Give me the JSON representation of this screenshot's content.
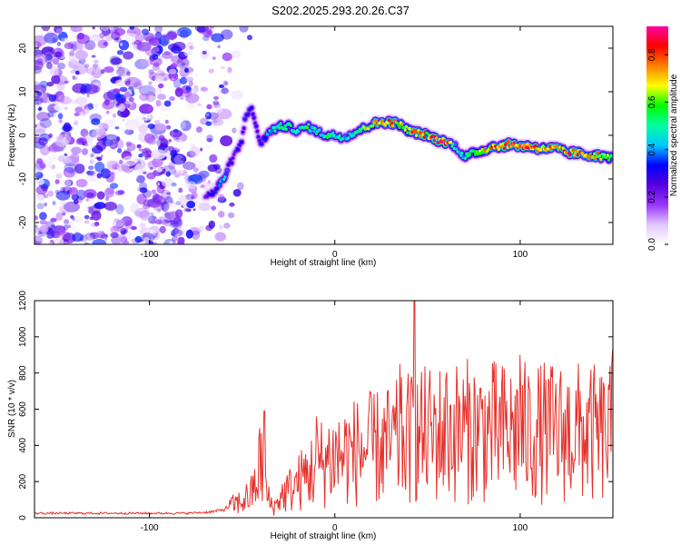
{
  "title": "S202.2025.293.20.26.C37",
  "chart_data": [
    {
      "type": "heatmap",
      "name": "spectrogram",
      "xlabel": "Height of straight line (km)",
      "ylabel": "Frequency (Hz)",
      "xlim": [
        -162,
        150
      ],
      "ylim": [
        -25,
        25
      ],
      "xticks": [
        -100,
        0,
        100
      ],
      "yticks": [
        -20,
        -10,
        0,
        10,
        20
      ],
      "colorbar": {
        "label": "Normalized spectral amplitude",
        "range": [
          0.0,
          0.92
        ],
        "ticks": [
          0.0,
          0.2,
          0.4,
          0.6,
          0.8
        ],
        "tick_labels": [
          "0.0",
          "0.2",
          "0.4",
          "0.6",
          "0.8"
        ],
        "colors": [
          "#ffffff",
          "#e0c8ff",
          "#9933ff",
          "#5500dd",
          "#0000ff",
          "#00c8ff",
          "#00ffa0",
          "#00ff00",
          "#ffff00",
          "#ff8000",
          "#ff0000",
          "#ff00a0"
        ]
      },
      "noise_region": {
        "x_from": -162,
        "x_to": -60,
        "y_from": -25,
        "y_to": 25,
        "amplitude": 0.18
      },
      "ridge": {
        "x": [
          -70,
          -65,
          -60,
          -56,
          -52,
          -50,
          -48,
          -45,
          -43,
          -40,
          -35,
          -30,
          -25,
          -20,
          -15,
          -10,
          -5,
          0,
          5,
          10,
          15,
          20,
          25,
          30,
          35,
          40,
          45,
          50,
          55,
          60,
          65,
          70,
          75,
          80,
          85,
          90,
          95,
          100,
          105,
          110,
          115,
          120,
          125,
          130,
          135,
          140,
          145,
          150
        ],
        "y": [
          -14,
          -13,
          -10,
          -6,
          -3,
          -1,
          5,
          6,
          3,
          -2,
          1,
          2,
          2,
          1,
          2,
          1,
          0,
          0,
          -0.5,
          0.5,
          1.5,
          2.5,
          3,
          3,
          2.5,
          1,
          0.5,
          0,
          -1,
          -1.5,
          -2.5,
          -5,
          -4,
          -3.5,
          -2.5,
          -2.5,
          -2,
          -2.5,
          -2.5,
          -3,
          -3,
          -3,
          -4,
          -4,
          -4.5,
          -4.5,
          -5,
          -5
        ],
        "amplitude": [
          0.25,
          0.35,
          0.45,
          0.3,
          0.3,
          0.3,
          0.35,
          0.3,
          0.3,
          0.3,
          0.45,
          0.5,
          0.55,
          0.5,
          0.55,
          0.5,
          0.55,
          0.5,
          0.5,
          0.55,
          0.6,
          0.7,
          0.8,
          0.85,
          0.7,
          0.75,
          0.85,
          0.75,
          0.9,
          0.85,
          0.5,
          0.5,
          0.65,
          0.7,
          0.8,
          0.85,
          0.85,
          0.9,
          0.85,
          0.8,
          0.8,
          0.75,
          0.85,
          0.8,
          0.8,
          0.75,
          0.65,
          0.6
        ]
      }
    },
    {
      "type": "line",
      "name": "snr",
      "xlabel": "Height of straight line (km)",
      "ylabel": "SNR (10 * v/v)",
      "xlim": [
        -162,
        150
      ],
      "ylim": [
        0,
        1200
      ],
      "xticks": [
        -100,
        0,
        100
      ],
      "yticks": [
        0,
        200,
        400,
        600,
        800,
        1000,
        1200
      ],
      "color": "#e8302a",
      "envelope": {
        "x": [
          -162,
          -120,
          -80,
          -70,
          -65,
          -60,
          -55,
          -50,
          -45,
          -42,
          -40,
          -38,
          -35,
          -32,
          -30,
          -25,
          -20,
          -15,
          -10,
          -5,
          0,
          10,
          20,
          30,
          40,
          50,
          60,
          70,
          80,
          90,
          100,
          110,
          120,
          130,
          140,
          145,
          150
        ],
        "y": [
          25,
          25,
          25,
          30,
          35,
          45,
          70,
          90,
          130,
          200,
          320,
          180,
          80,
          60,
          110,
          150,
          190,
          240,
          280,
          320,
          340,
          360,
          380,
          400,
          440,
          460,
          470,
          480,
          480,
          470,
          470,
          470,
          470,
          470,
          460,
          450,
          470
        ]
      },
      "peaks": [
        {
          "x": -38,
          "y": 590
        },
        {
          "x": -10,
          "y": 560
        },
        {
          "x": 35,
          "y": 850
        },
        {
          "x": 43,
          "y": 1200
        },
        {
          "x": 60,
          "y": 760
        },
        {
          "x": 100,
          "y": 900
        },
        {
          "x": 150,
          "y": 930
        }
      ]
    }
  ]
}
